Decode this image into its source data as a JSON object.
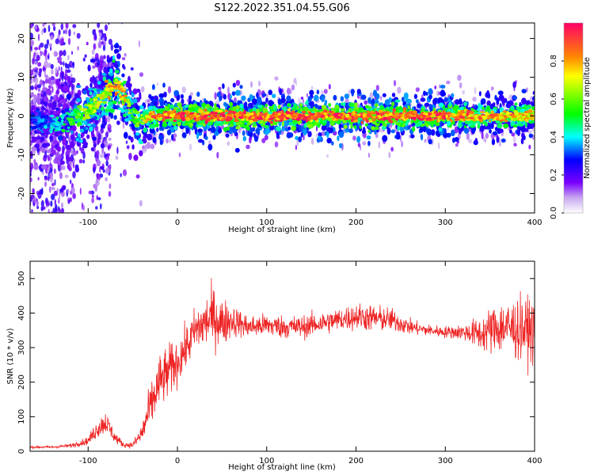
{
  "figure": {
    "title": "S122.2022.351.04.55.G06"
  },
  "chart_data": [
    {
      "type": "heatmap",
      "title": "S122.2022.351.04.55.G06",
      "xlabel": "Height of straight line (km)",
      "ylabel": "Frequency (Hz)",
      "xlim": [
        -165,
        400
      ],
      "ylim": [
        -25,
        24
      ],
      "x_ticks": [
        -100,
        0,
        100,
        200,
        300,
        400
      ],
      "y_ticks": [
        -20,
        -10,
        0,
        10,
        20
      ],
      "grid": false,
      "colorbar": {
        "label": "Normalized spectral amplitude",
        "range": [
          0,
          1
        ],
        "ticks": [
          "0.0",
          "0.2",
          "0.4",
          "0.6",
          "0.8"
        ]
      },
      "ridge": {
        "x": [
          -165,
          -140,
          -120,
          -100,
          -90,
          -80,
          -72,
          -65,
          -60,
          -55,
          -50,
          -45,
          -40,
          -30,
          0,
          50,
          100,
          150,
          200,
          250,
          300,
          350,
          400
        ],
        "freq": [
          -1,
          -2,
          -1,
          1,
          3,
          6,
          8,
          7,
          5,
          3,
          1,
          -1,
          -1,
          0,
          0,
          0,
          0,
          0,
          0,
          0,
          0,
          0,
          0
        ],
        "peak_amplitude": [
          0.3,
          0.4,
          0.55,
          0.65,
          0.7,
          0.75,
          0.8,
          0.85,
          0.8,
          0.7,
          0.6,
          0.6,
          0.7,
          0.85,
          0.95,
          0.95,
          0.95,
          0.95,
          0.95,
          0.95,
          0.9,
          0.85,
          0.8
        ]
      }
    },
    {
      "type": "line",
      "xlabel": "Height of straight line (km)",
      "ylabel": "SNR (10 * v/v)",
      "xlim": [
        -165,
        400
      ],
      "ylim": [
        0,
        550
      ],
      "x_ticks": [
        -100,
        0,
        100,
        200,
        300,
        400
      ],
      "y_ticks": [
        0,
        100,
        200,
        300,
        400,
        500
      ],
      "grid": false,
      "series": [
        {
          "color": "#ee2222",
          "x": [
            -165,
            -140,
            -120,
            -100,
            -90,
            -80,
            -70,
            -60,
            -50,
            -40,
            -30,
            -20,
            -10,
            0,
            10,
            20,
            30,
            40,
            50,
            60,
            70,
            80,
            100,
            120,
            140,
            160,
            180,
            200,
            220,
            240,
            260,
            280,
            300,
            320,
            340,
            360,
            380,
            400
          ],
          "values": [
            12,
            12,
            16,
            30,
            65,
            85,
            40,
            18,
            18,
            50,
            130,
            200,
            230,
            260,
            300,
            350,
            370,
            390,
            370,
            380,
            370,
            360,
            365,
            360,
            360,
            370,
            380,
            390,
            385,
            380,
            360,
            350,
            345,
            345,
            340,
            360,
            355,
            350
          ],
          "spread": [
            3,
            3,
            5,
            10,
            25,
            30,
            15,
            6,
            8,
            30,
            60,
            70,
            70,
            60,
            55,
            60,
            70,
            75,
            65,
            45,
            35,
            30,
            30,
            30,
            30,
            30,
            30,
            35,
            35,
            30,
            20,
            15,
            15,
            20,
            45,
            70,
            80,
            80
          ]
        }
      ]
    }
  ]
}
